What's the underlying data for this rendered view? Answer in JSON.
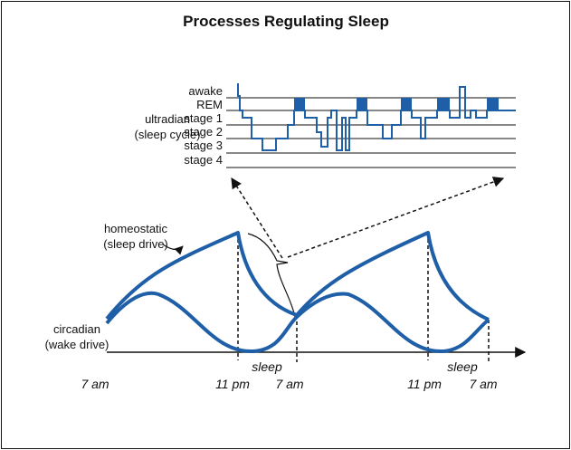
{
  "title": "Processes Regulating Sleep",
  "stages": [
    "awake",
    "REM",
    "stage 1",
    "stage 2",
    "stage 3",
    "stage 4"
  ],
  "ultradian": {
    "label": "ultradian",
    "sublabel": "(sleep cycle)"
  },
  "homeostatic": {
    "label": "homeostatic",
    "sublabel": "(sleep drive)"
  },
  "circadian": {
    "label": "circadian",
    "sublabel": "(wake drive)"
  },
  "time_labels": [
    "7 am",
    "11 pm",
    "7 am",
    "11 pm",
    "7 am"
  ],
  "sleep_labels": [
    "sleep",
    "sleep"
  ]
}
